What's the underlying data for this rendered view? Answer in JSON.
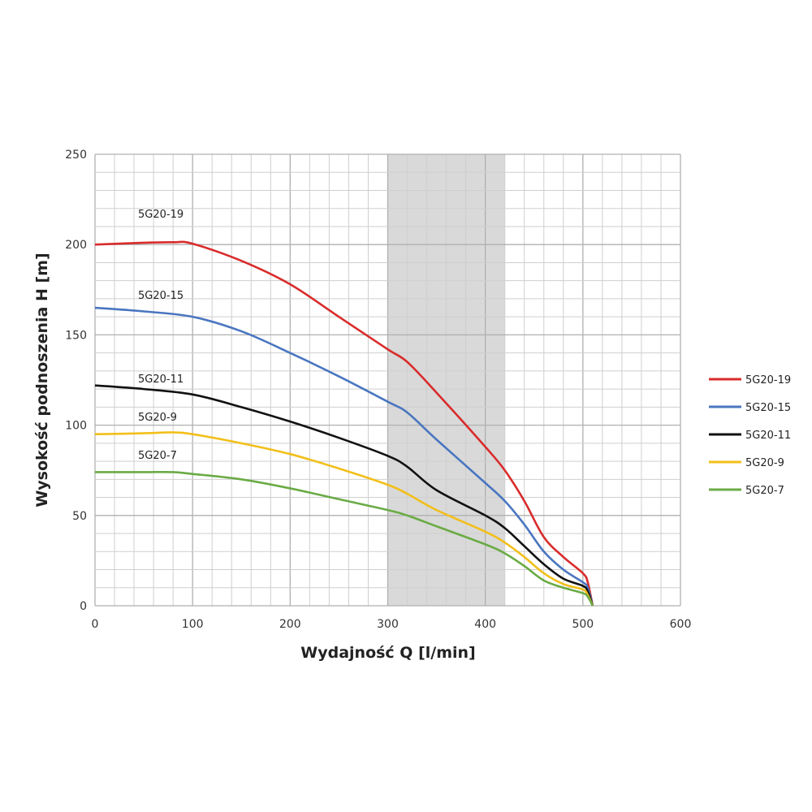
{
  "chart_data": {
    "type": "line",
    "title": "",
    "xlabel": "Wydajność Q [l/min]",
    "ylabel": "Wysokość podnoszenia H [m]",
    "xlim": [
      0,
      600
    ],
    "ylim": [
      0,
      250
    ],
    "x_ticks": [
      "0",
      "100",
      "200",
      "300",
      "400",
      "500",
      "600"
    ],
    "y_ticks": [
      "0",
      "50",
      "100",
      "150",
      "200",
      "250"
    ],
    "grid": true,
    "highlight_band": {
      "x_from": 300,
      "x_to": 420,
      "color": "#d9d9d9"
    },
    "legend_position": "right",
    "series": [
      {
        "name": "5G20-19",
        "color": "#d92b2b",
        "x": [
          0,
          50,
          80,
          100,
          150,
          200,
          250,
          300,
          320,
          350,
          400,
          420,
          440,
          460,
          480,
          500,
          505,
          510
        ],
        "y": [
          200,
          201,
          201.3,
          200.5,
          191,
          178,
          160,
          142,
          135,
          118,
          88,
          75,
          58,
          38,
          27,
          18,
          13,
          0
        ]
      },
      {
        "name": "5G20-15",
        "color": "#4a76c0",
        "x": [
          0,
          50,
          100,
          150,
          200,
          250,
          300,
          320,
          350,
          400,
          420,
          440,
          460,
          480,
          500,
          505,
          510
        ],
        "y": [
          165,
          163,
          160,
          152,
          140,
          127,
          113,
          107,
          92,
          68,
          58,
          45,
          30,
          20,
          13,
          10,
          0
        ]
      },
      {
        "name": "5G20-11",
        "color": "#111111",
        "x": [
          0,
          50,
          100,
          150,
          200,
          250,
          300,
          320,
          350,
          400,
          420,
          440,
          460,
          480,
          500,
          505,
          510
        ],
        "y": [
          122,
          120,
          117,
          110,
          102,
          93,
          83,
          77,
          64,
          50,
          43,
          33,
          23,
          15,
          11,
          8,
          0
        ]
      },
      {
        "name": "5G20-9",
        "color": "#f2bf1a",
        "x": [
          0,
          50,
          80,
          100,
          150,
          200,
          250,
          300,
          320,
          350,
          400,
          420,
          440,
          460,
          480,
          500,
          505,
          510
        ],
        "y": [
          95,
          95.5,
          96,
          95,
          90,
          84,
          76,
          67,
          62,
          53,
          41,
          35,
          27,
          18,
          12,
          9,
          6,
          0
        ]
      },
      {
        "name": "5G20-7",
        "color": "#6aab45",
        "x": [
          0,
          50,
          80,
          100,
          150,
          200,
          250,
          300,
          320,
          350,
          400,
          420,
          440,
          460,
          480,
          500,
          505,
          510
        ],
        "y": [
          74,
          74,
          74,
          73,
          70,
          65,
          59,
          53,
          50,
          44,
          34,
          29,
          22,
          14,
          10,
          7,
          5,
          0
        ]
      }
    ]
  }
}
